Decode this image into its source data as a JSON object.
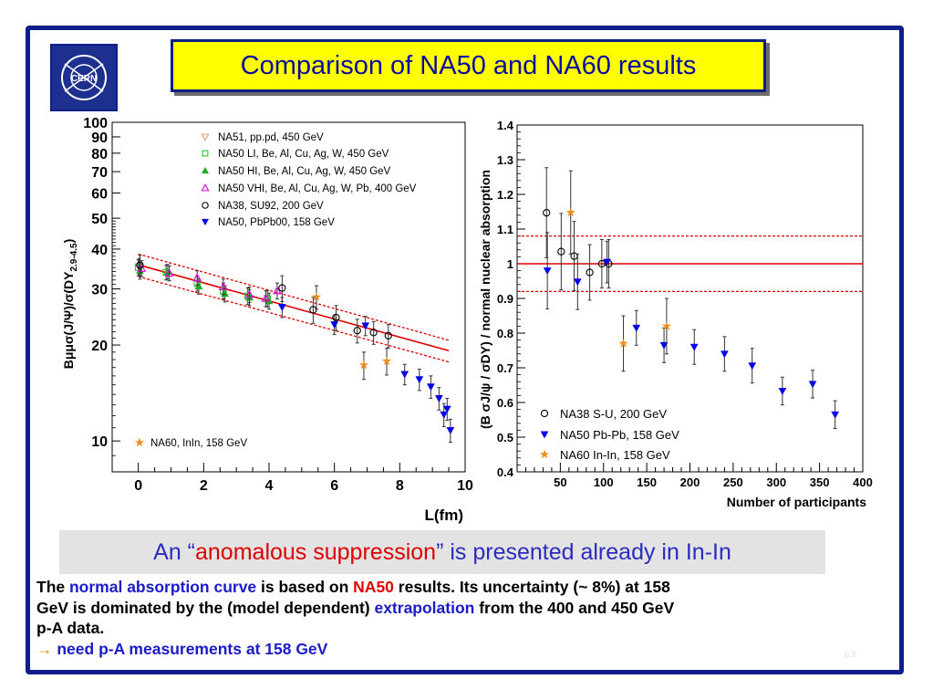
{
  "title": "Comparison of NA50 and NA60 results",
  "logo_text": "CERN",
  "banner": {
    "prefix": "An “",
    "highlight": "anomalous suppression",
    "suffix": "” is presented already in In-In"
  },
  "note": {
    "l1a": "The ",
    "l1b": "normal absorption curve",
    "l1c": " is based on ",
    "l1d": "NA50",
    "l1e": " results. Its uncertainty (~ 8%) at 158",
    "l2a": "GeV is dominated by the (model dependent) ",
    "l2b": "extrapolation",
    "l2c": " from the 400 and 450 GeV",
    "l3": " p-A data.",
    "arrow": "→",
    "l4": " need p-A measurements at 158 GeV"
  },
  "page_number": "p.9",
  "colors": {
    "frame": "#0d1d8a",
    "title_bg": "#ffff00",
    "title_text": "#0b0ba0",
    "na51": "#d4a373",
    "na50_ll": "#29c529",
    "na50_hi": "#1faa1f",
    "na50_vhi": "#e000e0",
    "na38": "#000000",
    "pbpb": "#0000e6",
    "na60": "#f08c1e",
    "fit": "#e00000"
  },
  "chart_data": [
    {
      "type": "scatter",
      "xlabel": "L(fm)",
      "ylabel": "Bμμσ(J/Ψ)/σ(DY",
      "ylabel_sub": "2.9-4.5",
      "ylabel_tail": ")",
      "yscale": "log",
      "xlim": [
        -0.8,
        10
      ],
      "ylim": [
        8,
        100
      ],
      "xticks": [
        "0",
        "2",
        "4",
        "6",
        "8",
        "10"
      ],
      "yticks": [
        "10",
        "20",
        "30",
        "40",
        "50",
        "60",
        "70",
        "80",
        "90",
        "100"
      ],
      "fit": {
        "x": [
          0,
          9.5
        ],
        "y": [
          35.7,
          19.2
        ],
        "band_upper": [
          38.6,
          20.7
        ],
        "band_lower": [
          32.8,
          17.7
        ]
      },
      "series": [
        {
          "name": "NA51, pp.pd, 450 GeV",
          "marker": "triangle-down-open",
          "color": "#d4a373",
          "x": [
            0.02
          ],
          "y": [
            35.2
          ],
          "err": [
            2.2
          ]
        },
        {
          "name": "NA50 LI, Be, Al, Cu, Ag, W, 450 GeV",
          "marker": "square-open",
          "color": "#29c529",
          "x": [
            0.0,
            0.85,
            1.8,
            2.6,
            3.35,
            3.95
          ],
          "y": [
            35.0,
            33.8,
            31.2,
            29.6,
            28.5,
            28.0
          ],
          "err": [
            2.0,
            1.8,
            1.7,
            1.7,
            1.7,
            1.7
          ]
        },
        {
          "name": "NA50 HI, Be, Al, Cu, Ag, W, 450 GeV",
          "marker": "triangle-up",
          "color": "#1faa1f",
          "x": [
            0.05,
            0.9,
            1.85,
            2.65,
            3.4,
            4.0
          ],
          "y": [
            34.2,
            34.0,
            30.6,
            29.0,
            28.2,
            27.5
          ],
          "err": [
            2.0,
            1.8,
            1.7,
            1.7,
            1.6,
            1.6
          ]
        },
        {
          "name": "NA50 VHI, Be, Al, Cu, Ag, W, Pb, 400 GeV",
          "marker": "triangle-up-open",
          "color": "#e000e0",
          "x": [
            0.1,
            0.95,
            1.8,
            2.6,
            3.4,
            3.9,
            4.25
          ],
          "y": [
            34.8,
            33.6,
            32.5,
            30.5,
            28.8,
            28.0,
            29.6
          ],
          "err": [
            2.0,
            1.8,
            1.7,
            1.7,
            1.6,
            1.6,
            1.7
          ]
        },
        {
          "name": "NA38, SU92, 200 GeV",
          "marker": "circle-open",
          "color": "#000000",
          "x": [
            0.05,
            4.4,
            5.35,
            6.05,
            6.7,
            7.2,
            7.65
          ],
          "y": [
            35.6,
            30.2,
            25.8,
            24.4,
            22.2,
            21.9,
            21.4
          ],
          "err": [
            2.6,
            2.8,
            2.4,
            2.2,
            1.9,
            1.8,
            1.8
          ]
        },
        {
          "name": "NA50, PbPb00, 158 GeV",
          "marker": "triangle-down",
          "color": "#0000e6",
          "x": [
            4.4,
            6.0,
            6.95,
            8.15,
            8.6,
            8.95,
            9.2,
            9.35,
            9.45,
            9.55
          ],
          "y": [
            26.3,
            23.2,
            23.0,
            16.2,
            15.6,
            14.8,
            13.6,
            12.1,
            12.6,
            10.8
          ],
          "err": [
            1.9,
            1.6,
            1.6,
            1.2,
            1.2,
            1.2,
            1.1,
            1.0,
            1.0,
            0.9
          ]
        },
        {
          "name": "NA60, InIn, 158 GeV",
          "marker": "star",
          "color": "#f08c1e",
          "x": [
            5.45,
            6.9,
            7.6
          ],
          "y": [
            28.3,
            17.3,
            17.8
          ],
          "err": [
            2.4,
            1.7,
            1.7
          ]
        }
      ]
    },
    {
      "type": "scatter",
      "xlabel": "Number of participants",
      "ylabel": "(B σJ/ψ / σDY) / normal nuclear absorption",
      "xlim": [
        0,
        400
      ],
      "ylim": [
        0.4,
        1.4
      ],
      "xticks": [
        "50",
        "100",
        "150",
        "200",
        "250",
        "300",
        "350",
        "400"
      ],
      "yticks": [
        "0.4",
        "0.5",
        "0.6",
        "0.7",
        "0.8",
        "0.9",
        "1",
        "1.1",
        "1.2",
        "1.3",
        "1.4"
      ],
      "ref_line": 1.0,
      "ref_band": [
        0.92,
        1.08
      ],
      "series": [
        {
          "name": "NA38 S-U, 200 GeV",
          "marker": "circle-open",
          "color": "#000000",
          "x": [
            34,
            51,
            66,
            84,
            98,
            106
          ],
          "y": [
            1.147,
            1.035,
            1.022,
            0.975,
            1.0,
            1.0
          ],
          "err": [
            0.13,
            0.11,
            0.1,
            0.08,
            0.07,
            0.07
          ]
        },
        {
          "name": "NA50 Pb-Pb, 158 GeV",
          "marker": "triangle-down",
          "color": "#0000e6",
          "x": [
            35,
            70,
            104,
            138,
            170,
            205,
            240,
            272,
            307,
            342,
            368
          ],
          "y": [
            0.98,
            0.948,
            1.005,
            0.815,
            0.765,
            0.76,
            0.74,
            0.706,
            0.633,
            0.653,
            0.565
          ],
          "err": [
            0.11,
            0.08,
            0.06,
            0.05,
            0.05,
            0.05,
            0.05,
            0.05,
            0.04,
            0.04,
            0.04
          ]
        },
        {
          "name": "NA60 In-In, 158 GeV",
          "marker": "star",
          "color": "#f08c1e",
          "x": [
            62,
            123,
            173
          ],
          "y": [
            1.148,
            0.77,
            0.82
          ],
          "err": [
            0.12,
            0.08,
            0.08
          ]
        }
      ]
    }
  ]
}
